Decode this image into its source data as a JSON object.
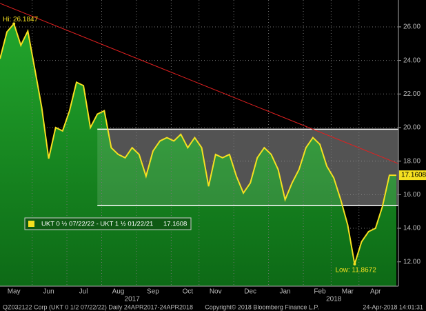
{
  "chart_data": {
    "type": "area-line",
    "series": [
      {
        "name": "UKT 0 ½ 07/22/22 - UKT 1 ½ 01/22/21",
        "color": "#f5e020",
        "fill": "#1c8f26",
        "values": [
          24.1,
          25.7,
          26.1847,
          24.9,
          25.75,
          23.5,
          21.2,
          18.15,
          20.0,
          19.8,
          21.0,
          22.7,
          22.5,
          20.0,
          20.8,
          21.0,
          18.8,
          18.4,
          18.2,
          18.8,
          18.4,
          17.1,
          18.6,
          19.2,
          19.4,
          19.2,
          19.6,
          18.8,
          19.4,
          18.8,
          16.5,
          18.4,
          18.2,
          18.4,
          17.1,
          16.1,
          16.7,
          18.2,
          18.8,
          18.4,
          17.5,
          15.7,
          16.7,
          17.5,
          18.8,
          19.4,
          19.0,
          17.7,
          17.0,
          15.7,
          14.2,
          11.8672,
          13.2,
          13.8,
          14.0,
          15.3,
          17.1608,
          17.1608
        ]
      }
    ],
    "categories": [
      null,
      null,
      "May",
      null,
      null,
      null,
      null,
      "Jun",
      null,
      null,
      null,
      null,
      "Jul",
      null,
      null,
      null,
      null,
      "Aug",
      null,
      null,
      null,
      null,
      "Sep",
      null,
      null,
      null,
      null,
      "Oct",
      null,
      null,
      null,
      "Nov",
      null,
      null,
      null,
      null,
      "Dec",
      null,
      null,
      null,
      null,
      "Jan",
      null,
      null,
      null,
      null,
      "Feb",
      null,
      null,
      null,
      "Mar",
      null,
      null,
      null,
      "Apr",
      null,
      null,
      null
    ],
    "year_categories": [
      null,
      null,
      null,
      null,
      null,
      null,
      null,
      null,
      null,
      null,
      null,
      null,
      null,
      null,
      null,
      null,
      null,
      null,
      null,
      "2017",
      null,
      null,
      null,
      null,
      null,
      null,
      null,
      null,
      null,
      null,
      null,
      null,
      null,
      null,
      null,
      null,
      null,
      null,
      null,
      null,
      null,
      null,
      null,
      null,
      null,
      null,
      null,
      null,
      "2018",
      null,
      null,
      null,
      null,
      null,
      null,
      null,
      null,
      null
    ],
    "ylim": [
      10.55,
      27.6
    ],
    "yticks": [
      {
        "value": 12,
        "label": "12.00"
      },
      {
        "value": 14,
        "label": "14.00"
      },
      {
        "value": 16,
        "label": "16.00"
      },
      {
        "value": 18,
        "label": "18.00"
      },
      {
        "value": 20,
        "label": "20.00"
      },
      {
        "value": 22,
        "label": "22.00"
      },
      {
        "value": 24,
        "label": "24.00"
      },
      {
        "value": 26,
        "label": "26.00"
      }
    ],
    "grid": true,
    "channel": {
      "from": 14,
      "range": [
        15.35,
        19.9
      ]
    },
    "trendline": {
      "color": "#e02020",
      "values": [
        27.4,
        17.85
      ]
    },
    "annotations": {
      "high": "Hi: 26.1847",
      "low": "Low: 11.8672"
    },
    "footer": {
      "left": "QZ032122 Corp (UKT 0 1/2 07/22/22)  Daily 24APR2017-24APR2018",
      "center": "Copyright© 2018 Bloomberg Finance L.P.",
      "right": "24-Apr-2018 14:01:31"
    }
  }
}
